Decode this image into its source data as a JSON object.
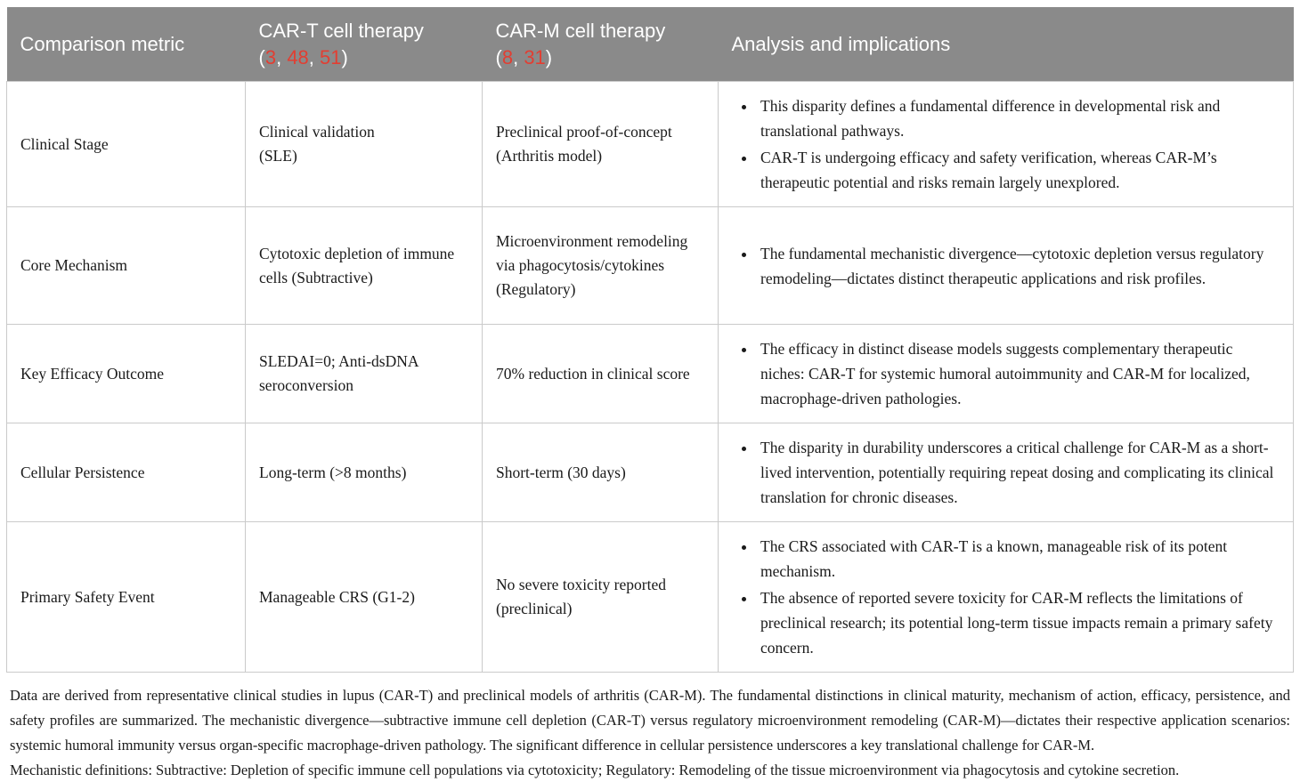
{
  "colors": {
    "header_bg": "#8a8a8a",
    "header_text": "#ffffff",
    "ref_red": "#e23e32",
    "border": "#cacaca",
    "body_text": "#1a1a1a"
  },
  "refs_punctuation": {
    "open": "(",
    "separator": ", ",
    "close": ")"
  },
  "header": {
    "metric": "Comparison metric",
    "cart": {
      "title": "CAR-T cell therapy",
      "refs": [
        "3",
        "48",
        "51"
      ]
    },
    "carm": {
      "title": "CAR-M cell therapy",
      "refs": [
        "8",
        "31"
      ]
    },
    "analysis": "Analysis and implications"
  },
  "rows": [
    {
      "metric": "Clinical Stage",
      "cart": "Clinical validation\n(SLE)",
      "carm": "Preclinical proof-of-concept\n(Arthritis model)",
      "analysis": [
        "This disparity defines a fundamental difference in developmental risk and translational pathways.",
        "CAR-T is undergoing efficacy and safety verification, whereas CAR-M’s therapeutic potential and risks remain largely unexplored."
      ]
    },
    {
      "metric": "Core Mechanism",
      "cart": "Cytotoxic depletion of immune cells (Subtractive)",
      "carm": "Microenvironment remodeling via phagocytosis/cytokines (Regulatory)",
      "analysis": [
        "The fundamental mechanistic divergence—cytotoxic depletion versus regulatory remodeling—dictates distinct therapeutic applications and risk profiles."
      ]
    },
    {
      "metric": "Key Efficacy Outcome",
      "cart": "SLEDAI=0; Anti-dsDNA seroconversion",
      "carm": "70% reduction in clinical score",
      "analysis": [
        "The efficacy in distinct disease models suggests complementary therapeutic niches: CAR-T for systemic humoral autoimmunity and CAR-M for localized, macrophage-driven pathologies."
      ]
    },
    {
      "metric": "Cellular Persistence",
      "cart": "Long-term (>8 months)",
      "carm": "Short-term (30 days)",
      "analysis": [
        "The disparity in durability underscores a critical challenge for CAR-M as a short-lived intervention, potentially requiring repeat dosing and complicating its clinical translation for chronic diseases."
      ]
    },
    {
      "metric": "Primary Safety Event",
      "cart": "Manageable CRS (G1-2)",
      "carm": "No severe toxicity reported (preclinical)",
      "analysis": [
        "The CRS associated with CAR-T is a known, manageable risk of its potent mechanism.",
        "The absence of reported severe toxicity for CAR-M reflects the limitations of preclinical research; its potential long-term tissue impacts remain a primary safety concern."
      ]
    }
  ],
  "footnotes": [
    "Data are derived from representative clinical studies in lupus (CAR-T) and preclinical models of arthritis (CAR-M). The fundamental distinctions in clinical maturity, mechanism of action, efficacy, persistence, and safety profiles are summarized. The mechanistic divergence—subtractive immune cell depletion (CAR-T) versus regulatory microenvironment remodeling (CAR-M)—dictates their respective application scenarios: systemic humoral immunity versus organ-specific macrophage-driven pathology. The significant difference in cellular persistence underscores a key translational challenge for CAR-M.",
    "Mechanistic definitions: Subtractive: Depletion of specific immune cell populations via cytotoxicity; Regulatory: Remodeling of the tissue microenvironment via phagocytosis and cytokine secretion."
  ]
}
